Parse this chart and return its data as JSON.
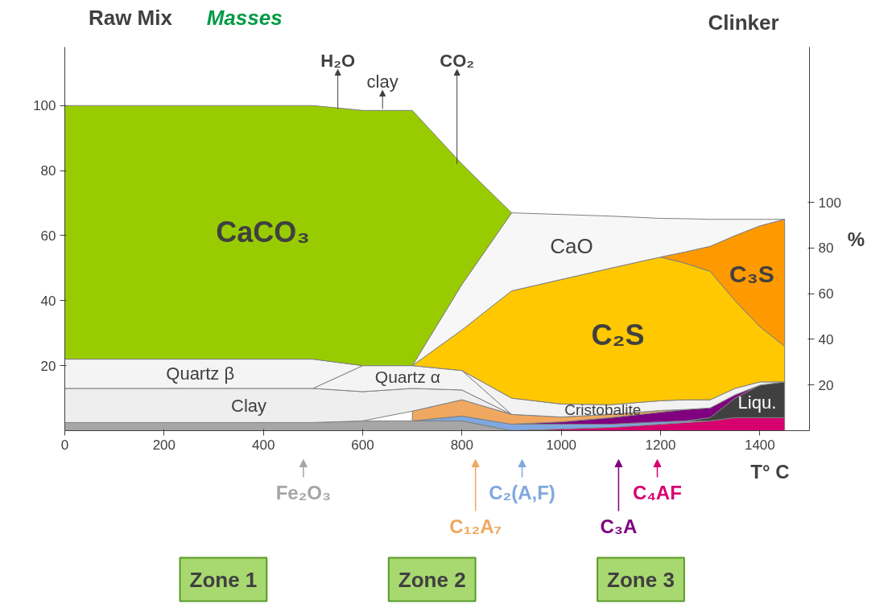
{
  "chart_data": {
    "type": "area",
    "title": "Masses",
    "ylabel": "Raw Mix",
    "y2label": "%",
    "xlabel": "T° C",
    "stacked": true,
    "legend": "bottom",
    "x": [
      0,
      500,
      600,
      700,
      800,
      900,
      1000,
      1100,
      1200,
      1250,
      1300,
      1350,
      1400,
      1450
    ],
    "xlim": [
      0,
      1500
    ],
    "xticks": [
      0,
      200,
      400,
      600,
      800,
      1000,
      1200,
      1400
    ],
    "ylim": [
      0,
      118
    ],
    "yticks": [
      20,
      40,
      60,
      80,
      100
    ],
    "y2lim": [
      0,
      168
    ],
    "y2ticks": [
      20,
      40,
      60,
      80,
      100
    ],
    "series": [
      {
        "name": "Fe₂O₃",
        "color": "#a6a6a6",
        "values": [
          2.5,
          2.5,
          3,
          3,
          3,
          0,
          null,
          null,
          null,
          null,
          null,
          null,
          null,
          null
        ]
      },
      {
        "name": "C₄AF",
        "color": "#d6006f",
        "values": [
          null,
          null,
          null,
          null,
          null,
          0,
          0.5,
          1,
          2,
          2.5,
          3,
          4,
          4,
          4
        ]
      },
      {
        "name": "C₂(A,F)",
        "color": "#7fa8e0",
        "values": [
          null,
          null,
          null,
          0,
          1.5,
          2,
          1.5,
          1,
          0.7,
          0.5,
          0,
          null,
          null,
          null
        ]
      },
      {
        "name": "Liqu.",
        "color": "#404040",
        "values": [
          null,
          null,
          null,
          null,
          null,
          null,
          null,
          null,
          null,
          0,
          1,
          6,
          10,
          11
        ]
      },
      {
        "name": "C₃A",
        "color": "#800080",
        "values": [
          null,
          null,
          null,
          null,
          null,
          0,
          0.7,
          2,
          3,
          3.5,
          3,
          1,
          0,
          null
        ]
      },
      {
        "name": "C₁₂A₇",
        "color": "#f0a860",
        "values": [
          null,
          null,
          null,
          3,
          5,
          3,
          1.5,
          1,
          0.5,
          0,
          null,
          null,
          null,
          null
        ]
      },
      {
        "name": "Clay",
        "color": "#eeeeee",
        "values": [
          10.5,
          10.5,
          9,
          7,
          3,
          0,
          null,
          null,
          null,
          null,
          null,
          null,
          null,
          null
        ]
      },
      {
        "name": "Quartz α",
        "color": "#f4f4f4",
        "values": [
          null,
          0,
          8,
          7,
          6,
          0,
          null,
          null,
          null,
          null,
          null,
          null,
          null,
          null
        ]
      },
      {
        "name": "Cristobalite",
        "color": "#f2f2f2",
        "values": [
          null,
          null,
          null,
          null,
          0,
          5,
          4,
          3,
          3,
          3,
          2.5,
          2,
          1,
          0
        ]
      },
      {
        "name": "Quartz β",
        "color": "#f4f4f4",
        "values": [
          9,
          9,
          0,
          null,
          null,
          null,
          null,
          null,
          null,
          null,
          null,
          null,
          null,
          null
        ]
      },
      {
        "name": "C₂S",
        "color": "#ffc800",
        "values": [
          null,
          null,
          null,
          0,
          12.5,
          33,
          38.3,
          42,
          44.2,
          42,
          39.5,
          27,
          17,
          11
        ]
      },
      {
        "name": "C₃S",
        "color": "#ff9900",
        "values": [
          null,
          null,
          null,
          null,
          null,
          null,
          null,
          null,
          0,
          3.5,
          7.7,
          20,
          31,
          39
        ]
      },
      {
        "name": "CaO",
        "color": "#f7f7f7",
        "values": [
          null,
          null,
          null,
          0,
          14,
          24,
          20,
          16,
          11.9,
          10.2,
          8.3,
          5,
          2,
          0
        ]
      },
      {
        "name": "CaCO₃",
        "color": "#99cc00",
        "values": [
          78,
          78,
          78.5,
          78.5,
          37,
          0,
          null,
          null,
          null,
          null,
          null,
          null,
          null,
          null
        ]
      }
    ],
    "annotations": [
      "Clinker",
      "Zone 1",
      "Zone 2",
      "Zone 3",
      {
        "text": "H₂O",
        "x": 550,
        "y": 99
      },
      {
        "text": "clay",
        "x": 640,
        "y": 99
      },
      {
        "text": "CO₂",
        "x": 790,
        "y": 82
      }
    ]
  }
}
